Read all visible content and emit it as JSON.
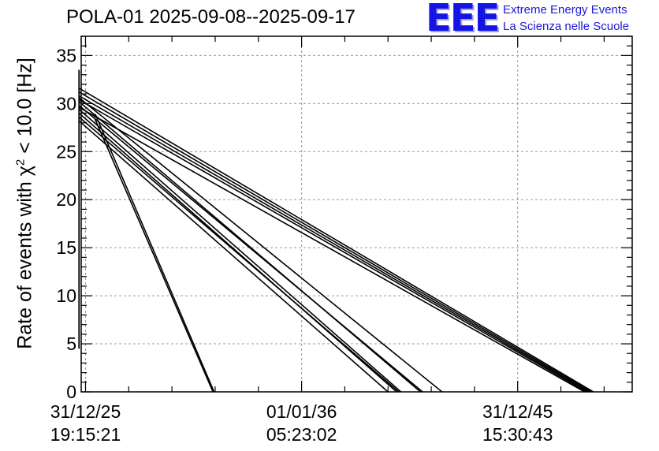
{
  "header": {
    "title": "POLA-01 2025-09-08--2025-09-17"
  },
  "logo": {
    "mark": "EEE",
    "line1": "Extreme Energy Events",
    "line2": "La Scienza nelle Scuole"
  },
  "chart_data": {
    "type": "line",
    "title": "POLA-01 2025-09-08--2025-09-17",
    "ylabel": {
      "prefix": "Rate of events with ",
      "symbol": "χ",
      "superscript": "2",
      "suffix": " < 10.0 [Hz]"
    },
    "xlabel": "",
    "ylim": [
      0,
      37
    ],
    "xlim": [
      -0.2,
      25.3
    ],
    "x_unit": "years since 31/12/25 19:15:21",
    "y_ticks": [
      0,
      5,
      10,
      15,
      20,
      25,
      30,
      35
    ],
    "x_ticks": [
      {
        "x": 0,
        "date": "31/12/25",
        "time": "19:15:21"
      },
      {
        "x": 10,
        "date": "01/01/36",
        "time": "05:23:02"
      },
      {
        "x": 20,
        "date": "31/12/45",
        "time": "15:30:43"
      }
    ],
    "grid": true,
    "legend": "none",
    "color": "#000000",
    "vertical_spike": {
      "x": -0.3,
      "y_min": 4.5,
      "y_max": 33.5
    },
    "series": [
      {
        "x": [
          -0.3,
          14.4
        ],
        "y": [
          29.0,
          0
        ]
      },
      {
        "x": [
          -0.3,
          14.5
        ],
        "y": [
          28.6,
          0
        ]
      },
      {
        "x": [
          -0.3,
          14.6
        ],
        "y": [
          29.4,
          0
        ]
      },
      {
        "x": [
          -0.3,
          14.0
        ],
        "y": [
          28.2,
          0
        ]
      },
      {
        "x": [
          -0.3,
          15.6
        ],
        "y": [
          29.8,
          0
        ]
      },
      {
        "x": [
          -0.3,
          15.5
        ],
        "y": [
          30.2,
          0
        ]
      },
      {
        "x": [
          -0.3,
          16.5
        ],
        "y": [
          30.6,
          0
        ]
      },
      {
        "x": [
          -0.3,
          23.5
        ],
        "y": [
          31.6,
          0
        ]
      },
      {
        "x": [
          -0.3,
          23.4
        ],
        "y": [
          31.2,
          0
        ]
      },
      {
        "x": [
          -0.3,
          23.3
        ],
        "y": [
          30.8,
          0
        ]
      },
      {
        "x": [
          -0.3,
          23.2
        ],
        "y": [
          30.4,
          0
        ]
      },
      {
        "x": [
          -0.3,
          23.1
        ],
        "y": [
          29.6,
          0
        ]
      },
      {
        "x": [
          0.4,
          5.9
        ],
        "y": [
          28.6,
          0
        ]
      },
      {
        "x": [
          0.45,
          5.95
        ],
        "y": [
          28.9,
          0
        ]
      }
    ]
  }
}
